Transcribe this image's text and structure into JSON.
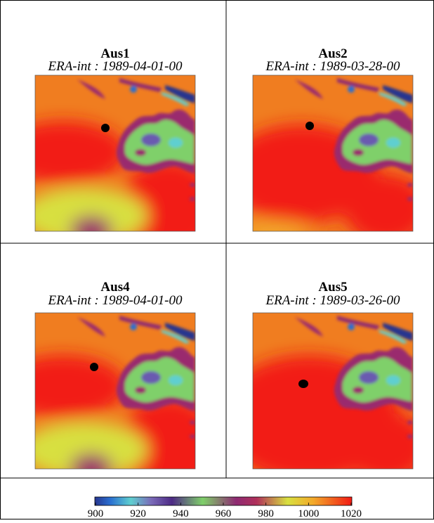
{
  "panels": [
    {
      "title": "Aus1",
      "subtitle": "ERA-int : 1989-04-01-00"
    },
    {
      "title": "Aus2",
      "subtitle": "ERA-int : 1989-03-28-00"
    },
    {
      "title": "Aus4",
      "subtitle": "ERA-int : 1989-04-01-00"
    },
    {
      "title": "Aus5",
      "subtitle": "ERA-int : 1989-03-26-00"
    }
  ],
  "colorbar": {
    "lim": [
      900,
      1020
    ],
    "ticks": [
      900,
      920,
      940,
      960,
      980,
      1000,
      1020
    ]
  }
}
